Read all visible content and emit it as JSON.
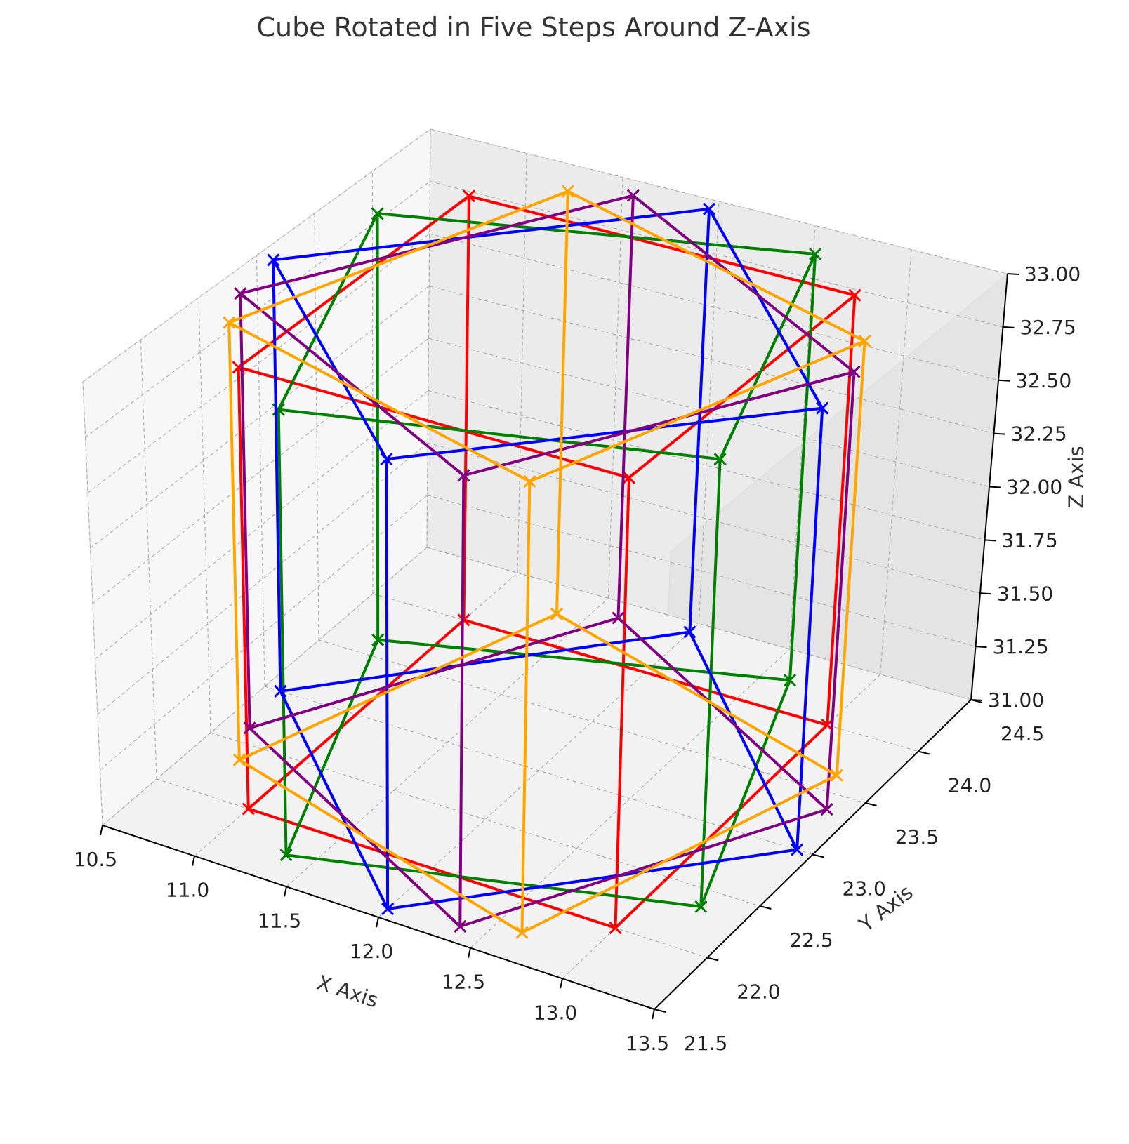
{
  "chart_data": {
    "type": "line3d",
    "title": "Cube Rotated in Five Steps Around Z-Axis",
    "xlabel": "X Axis",
    "ylabel": "Y Axis",
    "zlabel": "Z Axis",
    "xlim": [
      10.5,
      13.5
    ],
    "ylim": [
      21.5,
      24.5
    ],
    "zlim": [
      31.0,
      33.0
    ],
    "xticks": [
      "10.5",
      "11.0",
      "11.5",
      "12.0",
      "12.5",
      "13.0",
      "13.5"
    ],
    "yticks": [
      "21.5",
      "22.0",
      "22.5",
      "23.0",
      "23.5",
      "24.0",
      "24.5"
    ],
    "zticks": [
      "31.00",
      "31.25",
      "31.50",
      "31.75",
      "32.00",
      "32.25",
      "32.50",
      "32.75",
      "33.00"
    ],
    "grid": true,
    "marker": "x",
    "center": [
      12.0,
      23.0
    ],
    "half_diagonal": 1.414,
    "z_bottom": 31.0,
    "z_top": 33.0,
    "series": [
      {
        "color": "#ff0000",
        "rotation_deg": 0
      },
      {
        "color": "#008000",
        "rotation_deg": 18
      },
      {
        "color": "#0000ff",
        "rotation_deg": 45
      },
      {
        "color": "#800080",
        "rotation_deg": 60
      },
      {
        "color": "#ffa500",
        "rotation_deg": 72
      }
    ]
  }
}
